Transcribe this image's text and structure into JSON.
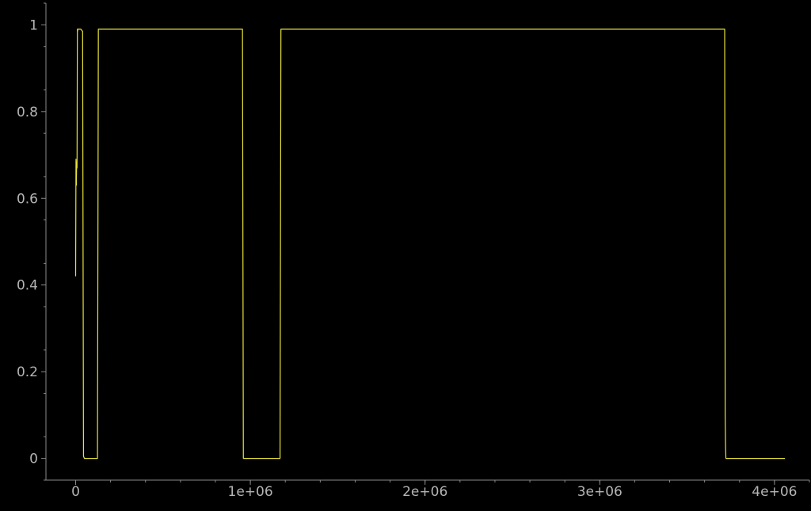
{
  "chart_data": {
    "type": "line",
    "title": "",
    "xlabel": "",
    "ylabel": "",
    "xlim": [
      -170000,
      4200000
    ],
    "ylim": [
      -0.05,
      1.05
    ],
    "x_ticks": [
      {
        "value": 0,
        "label": "0"
      },
      {
        "value": 1000000,
        "label": "1e+06"
      },
      {
        "value": 2000000,
        "label": "2e+06"
      },
      {
        "value": 3000000,
        "label": "3e+06"
      },
      {
        "value": 4000000,
        "label": "4e+06"
      }
    ],
    "x_minor_step": 200000,
    "y_ticks": [
      {
        "value": 0,
        "label": "0"
      },
      {
        "value": 0.2,
        "label": "0.2"
      },
      {
        "value": 0.4,
        "label": "0.4"
      },
      {
        "value": 0.6,
        "label": "0.6"
      },
      {
        "value": 0.8,
        "label": "0.8"
      },
      {
        "value": 1,
        "label": "1"
      }
    ],
    "y_minor_step": 0.1,
    "grid": false,
    "legend": "none",
    "colors": {
      "background": "#000000",
      "axis": "#8a8a8a",
      "tick_label": "#b4b4b4",
      "series": "#e8e23a"
    },
    "series": [
      {
        "x": [
          0,
          2000,
          4000,
          6000,
          8000,
          10000,
          11000,
          12000,
          14000,
          16000,
          20000,
          30000,
          40000,
          45000,
          50000,
          55000,
          125000,
          130000,
          135000,
          955000,
          960000,
          965000,
          1170000,
          1175000,
          1180000,
          3715000,
          3718000,
          3720000,
          3722000,
          3725000,
          4060000
        ],
        "y": [
          0.42,
          0.69,
          0.63,
          0.685,
          0.67,
          0.99,
          0.985,
          0.99,
          0.99,
          0.99,
          0.99,
          0.99,
          0.985,
          0.005,
          0.0,
          0.0,
          0.0,
          0.99,
          0.99,
          0.99,
          0.0,
          0.0,
          0.0,
          0.99,
          0.99,
          0.99,
          0.1,
          0.03,
          0.0,
          0.0,
          0.0
        ]
      }
    ]
  }
}
